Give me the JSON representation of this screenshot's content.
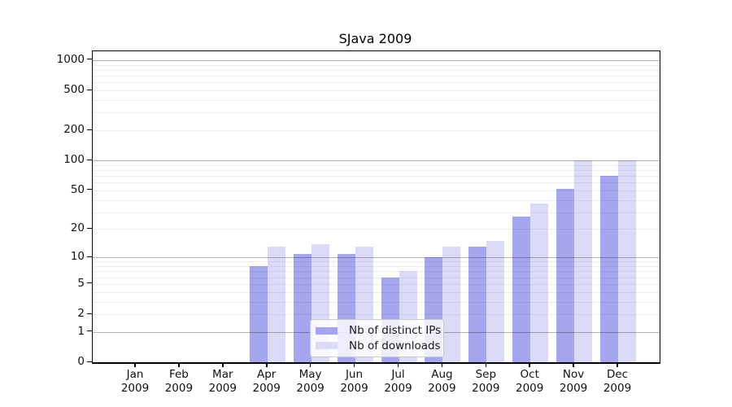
{
  "chart_data": {
    "type": "bar",
    "title": "SJava 2009",
    "categories": [
      "Jan",
      "Feb",
      "Mar",
      "Apr",
      "May",
      "Jun",
      "Jul",
      "Aug",
      "Sep",
      "Oct",
      "Nov",
      "Dec"
    ],
    "x_year_label": "2009",
    "series": [
      {
        "name": "Nb of distinct IPs",
        "color": "#a6a6ef",
        "values": [
          0,
          0,
          0,
          8,
          11,
          11,
          6,
          10,
          13,
          27,
          52,
          70
        ]
      },
      {
        "name": "Nb of downloads",
        "color": "#dbdbf7",
        "values": [
          0,
          0,
          0,
          13,
          14,
          13,
          7,
          13,
          15,
          37,
          100,
          100
        ]
      }
    ],
    "yscale": "log1p",
    "ylim": [
      0,
      1226
    ],
    "yticks": [
      0,
      1,
      2,
      5,
      10,
      20,
      50,
      100,
      200,
      500,
      1000
    ],
    "grid": {
      "major_values": [
        1,
        10,
        100,
        1000
      ],
      "minor_values": [
        2,
        3,
        4,
        5,
        6,
        7,
        8,
        9,
        20,
        30,
        40,
        50,
        60,
        70,
        80,
        90,
        200,
        300,
        400,
        500,
        600,
        700,
        800,
        900
      ]
    },
    "legend": {
      "position": "lower center",
      "entries": [
        "Nb of distinct IPs",
        "Nb of downloads"
      ]
    }
  }
}
